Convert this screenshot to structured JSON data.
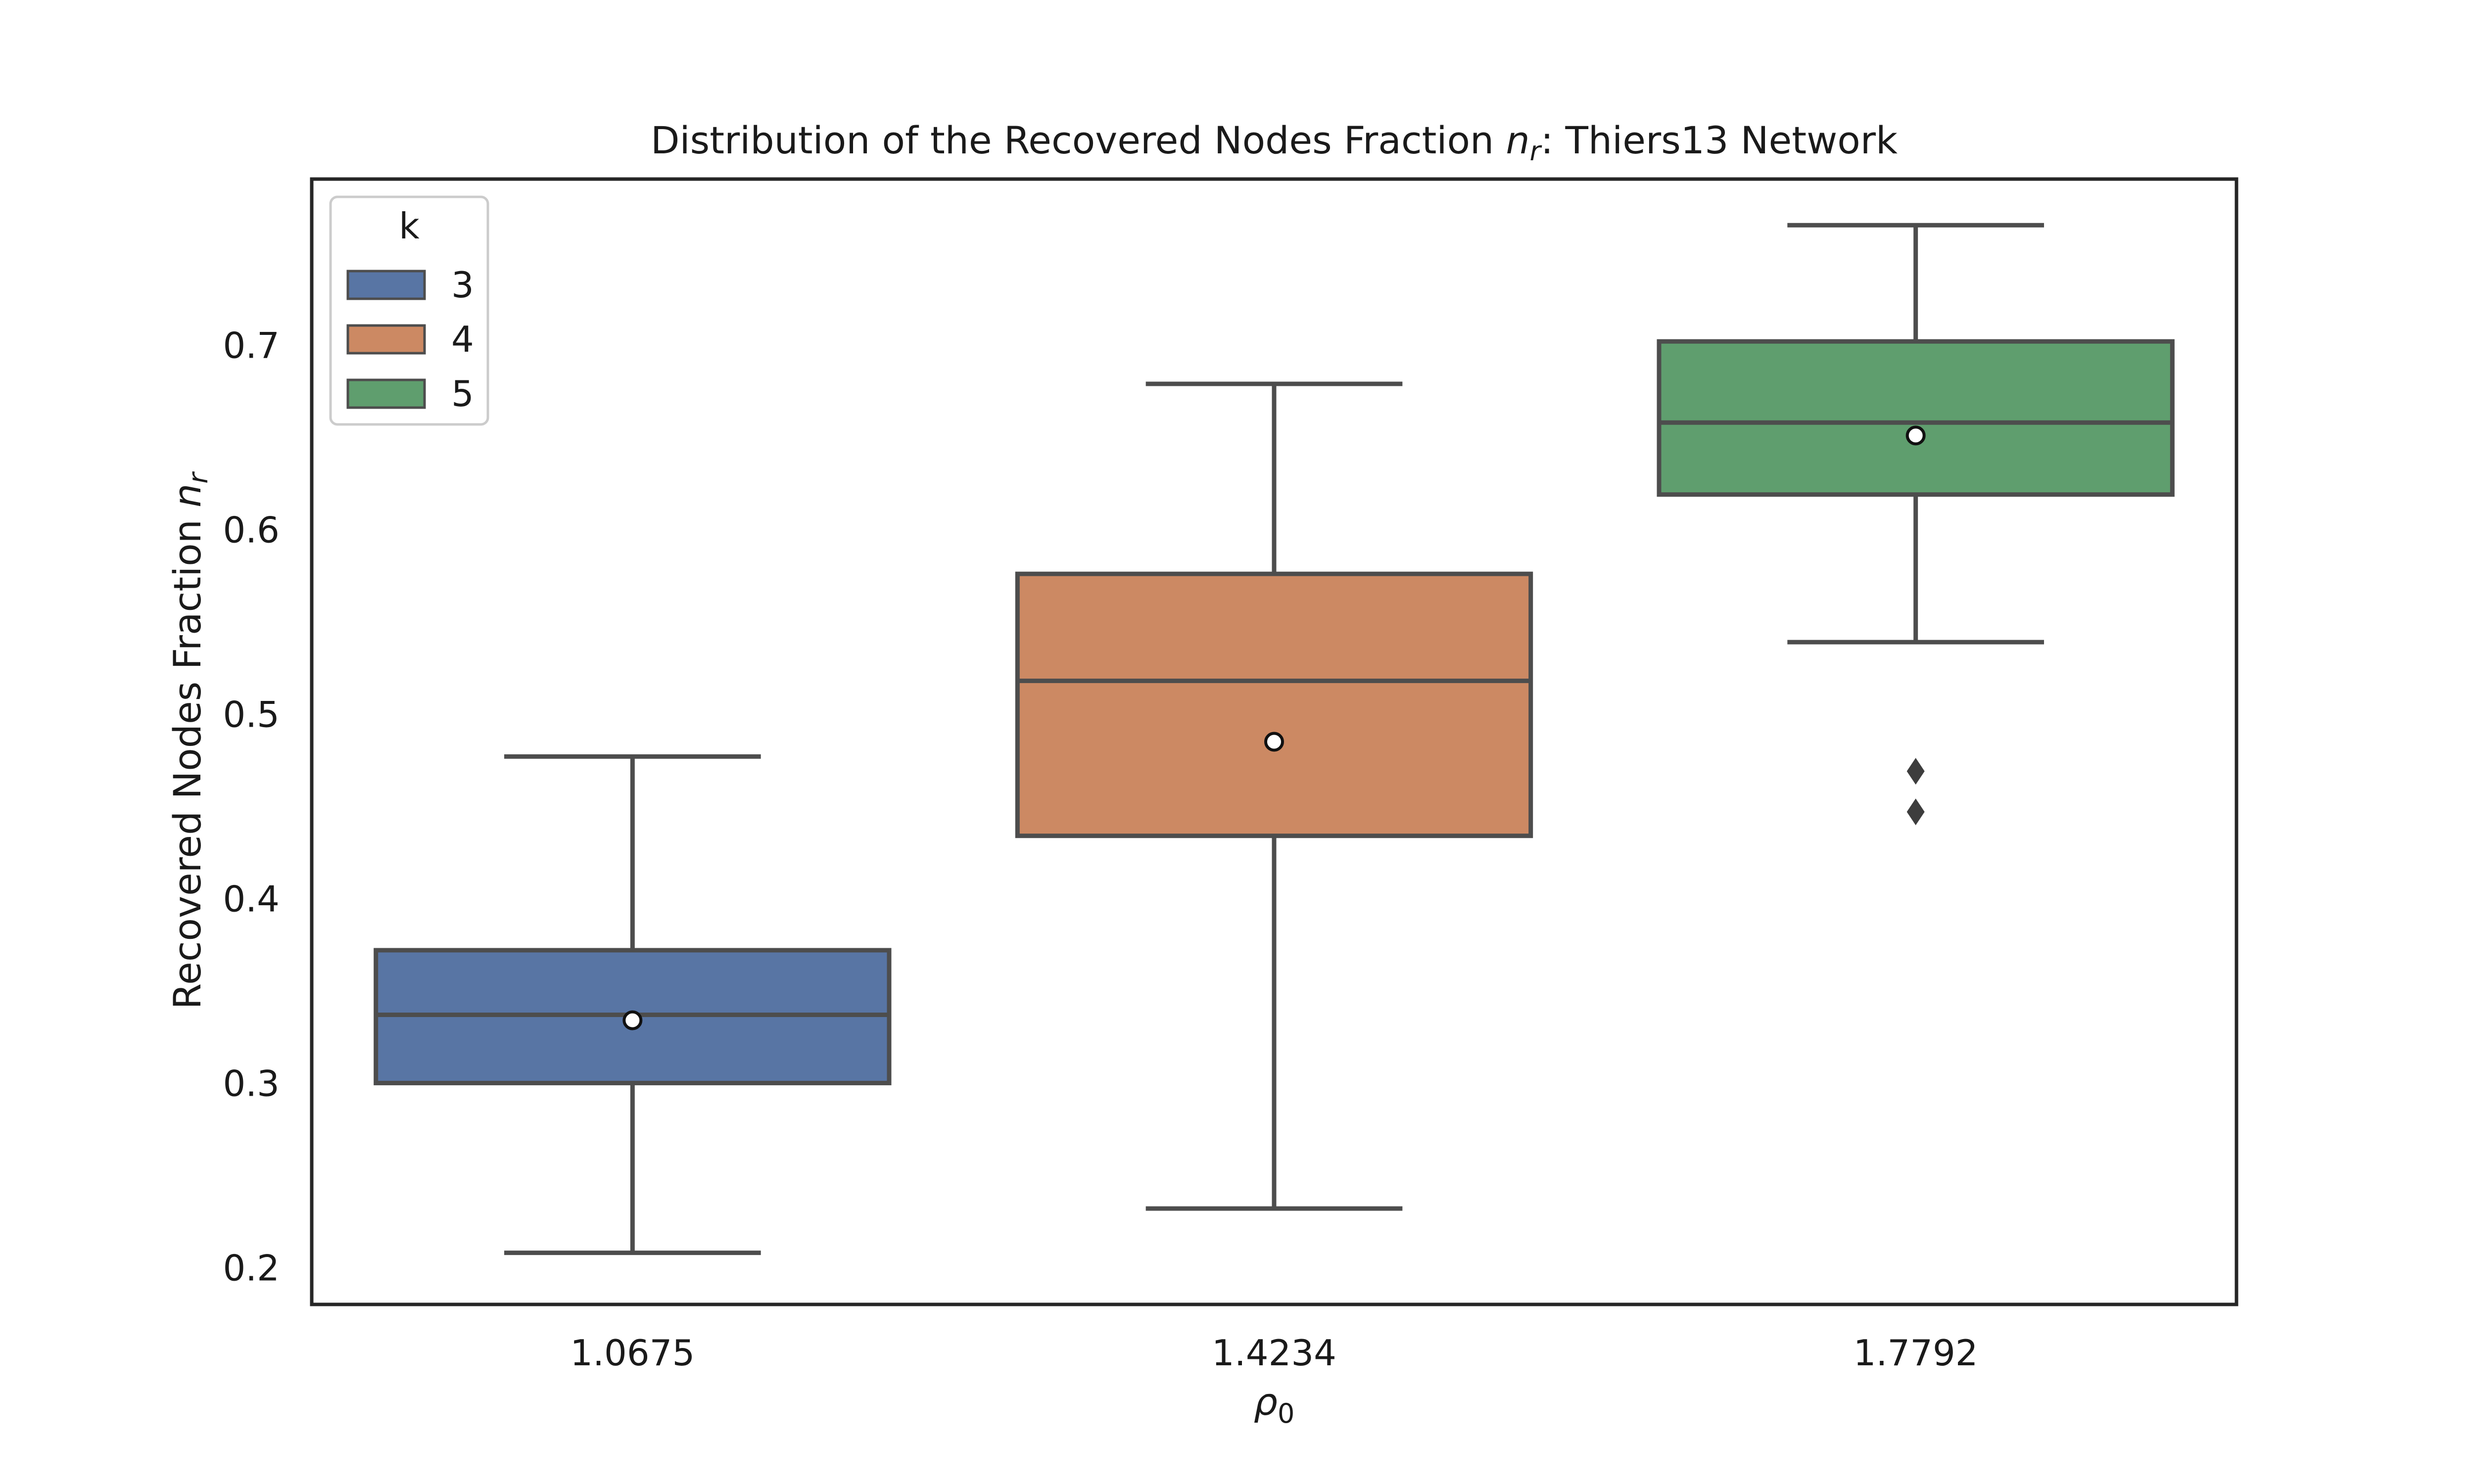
{
  "chart_data": {
    "type": "box",
    "title_prefix": "Distribution of the Recovered Nodes Fraction ",
    "title_sym": "n",
    "title_sub": "r",
    "title_suffix": ": Thiers13 Network",
    "xlabel_sym": "ρ",
    "xlabel_sub": "0",
    "ylabel_prefix": "Recovered Nodes Fraction ",
    "ylabel_sym": "n",
    "ylabel_sub": "r",
    "categories": [
      "1.0675",
      "1.4234",
      "1.7792"
    ],
    "ylim": [
      0.18,
      0.79
    ],
    "yticks": [
      0.2,
      0.3,
      0.4,
      0.5,
      0.6,
      0.7
    ],
    "ytick_labels": [
      "0.2",
      "0.3",
      "0.4",
      "0.5",
      "0.6",
      "0.7"
    ],
    "grid": false,
    "legend": {
      "title": "k",
      "placement": "top-left",
      "labels": [
        "3",
        "4",
        "5"
      ]
    },
    "series": [
      {
        "name": "3",
        "color": "#5875a4",
        "whisker_low": 0.208,
        "q1": 0.3,
        "median": 0.337,
        "q3": 0.372,
        "whisker_high": 0.477,
        "mean": 0.334,
        "outliers": []
      },
      {
        "name": "4",
        "color": "#cc8963",
        "whisker_low": 0.232,
        "q1": 0.434,
        "median": 0.518,
        "q3": 0.576,
        "whisker_high": 0.679,
        "mean": 0.485,
        "outliers": []
      },
      {
        "name": "5",
        "color": "#5f9e6e",
        "whisker_low": 0.539,
        "q1": 0.619,
        "median": 0.658,
        "q3": 0.702,
        "whisker_high": 0.765,
        "mean": 0.651,
        "outliers": [
          0.469,
          0.447
        ]
      }
    ]
  }
}
